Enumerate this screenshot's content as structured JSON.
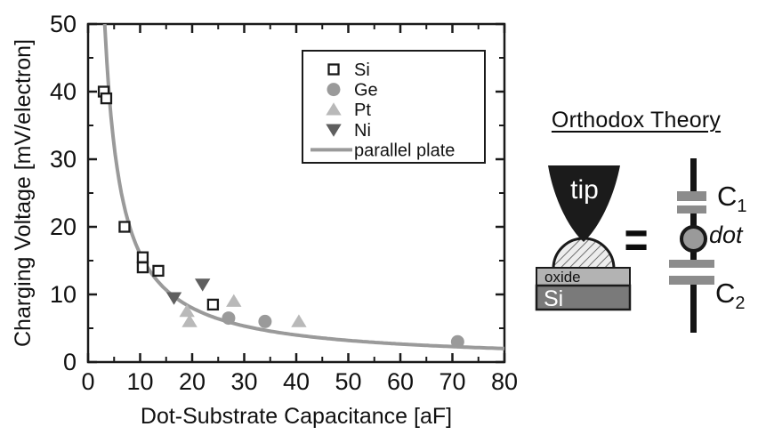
{
  "chart_data": {
    "type": "scatter",
    "title": "",
    "xlabel": "Dot-Substrate Capacitance [aF]",
    "ylabel": "Charging Voltage [mV/electron]",
    "xlim": [
      0,
      80
    ],
    "ylim": [
      0,
      50
    ],
    "x_major_ticks": [
      0,
      10,
      20,
      30,
      40,
      50,
      60,
      70,
      80
    ],
    "x_minor_ticks": [
      5,
      15,
      25,
      35,
      45,
      55,
      65,
      75
    ],
    "y_major_ticks": [
      0,
      10,
      20,
      30,
      40,
      50
    ],
    "y_minor_ticks": [
      5,
      15,
      25,
      35,
      45
    ],
    "grid": false,
    "legend_position": "upper-center framed box",
    "series": [
      {
        "name": "Si",
        "marker": "open-square",
        "color": "#1a1a1a",
        "fill": "#ffffff",
        "points": [
          [
            3,
            40
          ],
          [
            3.5,
            39
          ],
          [
            7,
            20
          ],
          [
            10.5,
            15.5
          ],
          [
            10.5,
            14
          ],
          [
            13.5,
            13.5
          ],
          [
            24,
            8.5
          ]
        ]
      },
      {
        "name": "Ge",
        "marker": "filled-circle",
        "color": "#9a9a9a",
        "points": [
          [
            27,
            6.5
          ],
          [
            34,
            6
          ],
          [
            71,
            3
          ]
        ]
      },
      {
        "name": "Pt",
        "marker": "filled-triangle-up",
        "color": "#b9b9b9",
        "points": [
          [
            19,
            7.5
          ],
          [
            19.5,
            6
          ],
          [
            28,
            9
          ],
          [
            40.5,
            6
          ]
        ]
      },
      {
        "name": "Ni",
        "marker": "filled-triangle-down",
        "color": "#5f5f5f",
        "points": [
          [
            16.5,
            9.5
          ],
          [
            22,
            11.5
          ]
        ]
      }
    ],
    "curve": {
      "name": "parallel plate",
      "color": "#9a9a9a",
      "model": "V[mV] = 160 / C[aF]",
      "constant": 160,
      "x_start": 3.2,
      "x_end": 80
    }
  },
  "diagram": {
    "title": "Orthodox Theory",
    "tip_label": "tip",
    "oxide_label": "oxide",
    "substrate_label": "Si",
    "equals": "=",
    "circuit": {
      "c1_base": "C",
      "c1_sub": "1",
      "dot_label": "dot",
      "c2_base": "C",
      "c2_sub": "2"
    },
    "colors": {
      "tip": "#1b1b1b",
      "oxide": "#b3b3b3",
      "substrate": "#7a7a7a",
      "plate": "#8c8c8c",
      "dot": "#9a9a9a",
      "wire": "#141414"
    }
  }
}
